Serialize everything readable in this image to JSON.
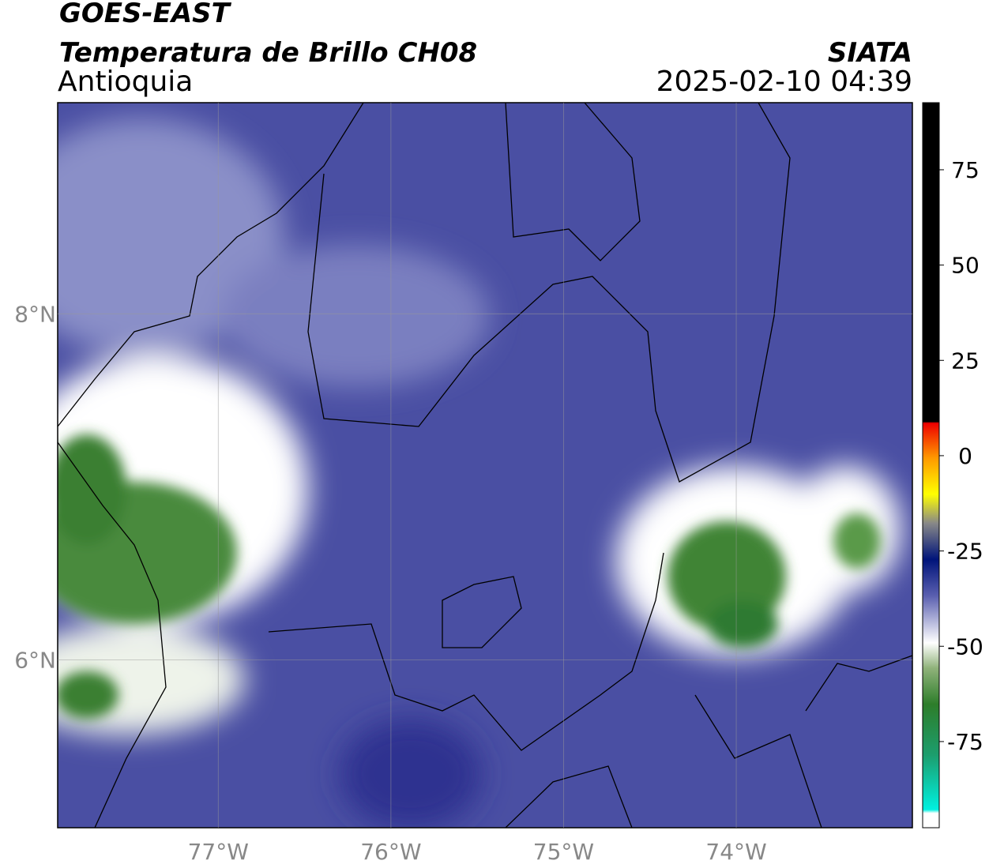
{
  "header": {
    "title": "GOES-EAST",
    "subtitle": "Temperatura de Brillo CH08",
    "region": "Antioquia",
    "source": "SIATA",
    "datetime": "2025-02-10 04:39"
  },
  "map": {
    "xlim": [
      -77.93,
      -72.98
    ],
    "ylim": [
      5.03,
      9.22
    ],
    "xticks": [
      {
        "value": -77,
        "label": "77°W"
      },
      {
        "value": -76,
        "label": "76°W"
      },
      {
        "value": -75,
        "label": "75°W"
      },
      {
        "value": -74,
        "label": "74°W"
      }
    ],
    "yticks": [
      {
        "value": 8,
        "label": "8°N"
      },
      {
        "value": 6,
        "label": "6°N"
      }
    ],
    "grid": true
  },
  "colorbar": {
    "lim": [
      -97.6,
      92.6
    ],
    "ticks": [
      75,
      50,
      25,
      0,
      -25,
      -50,
      -75
    ]
  }
}
